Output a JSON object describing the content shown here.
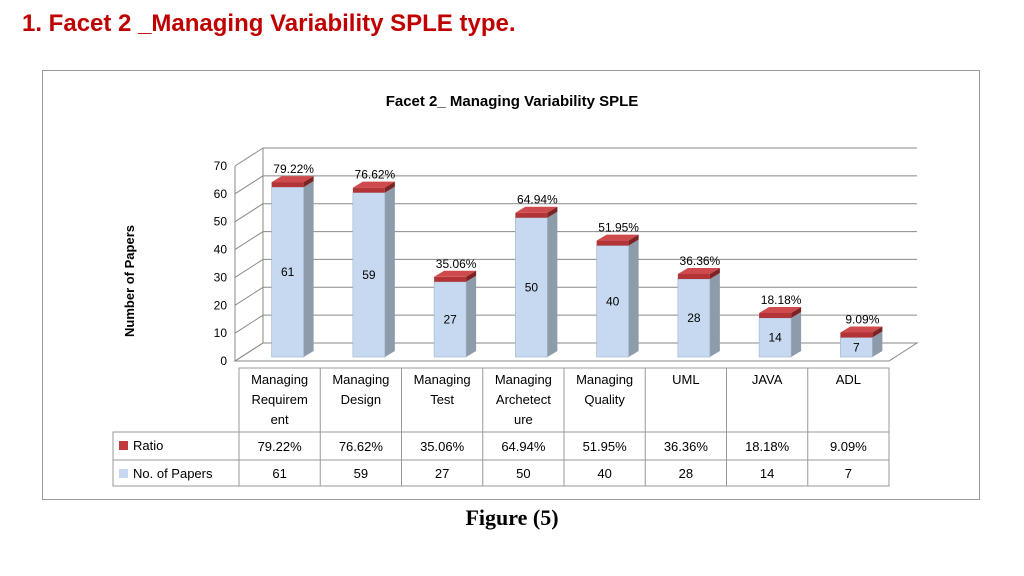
{
  "slide": {
    "heading": "1.   Facet 2 _Managing Variability SPLE type.",
    "figure_caption": "Figure (5)"
  },
  "chart_data": {
    "type": "bar",
    "title": "Facet 2_ Managing Variability SPLE",
    "ylabel": "Number of Papers",
    "xlabel": "",
    "ylim": [
      0,
      70
    ],
    "yticks": [
      0,
      10,
      20,
      30,
      40,
      50,
      60,
      70
    ],
    "grid": true,
    "three_d": true,
    "categories": [
      [
        "Managing",
        "Requirem",
        "ent"
      ],
      [
        "Managing",
        "Design"
      ],
      [
        "Managing",
        "Test"
      ],
      [
        "Managing",
        "Archetect",
        "ure"
      ],
      [
        "Managing",
        "Quality"
      ],
      [
        "UML"
      ],
      [
        "JAVA"
      ],
      [
        "ADL"
      ]
    ],
    "series": [
      {
        "name": "Ratio",
        "color": "#c0393b",
        "values": [
          "79.22%",
          "76.62%",
          "35.06%",
          "64.94%",
          "51.95%",
          "36.36%",
          "18.18%",
          "9.09%"
        ]
      },
      {
        "name": "No. of Papers",
        "color": "#c6d9f1",
        "values": [
          61,
          59,
          27,
          50,
          40,
          28,
          14,
          7
        ]
      }
    ],
    "legend_placement": "data-table"
  }
}
